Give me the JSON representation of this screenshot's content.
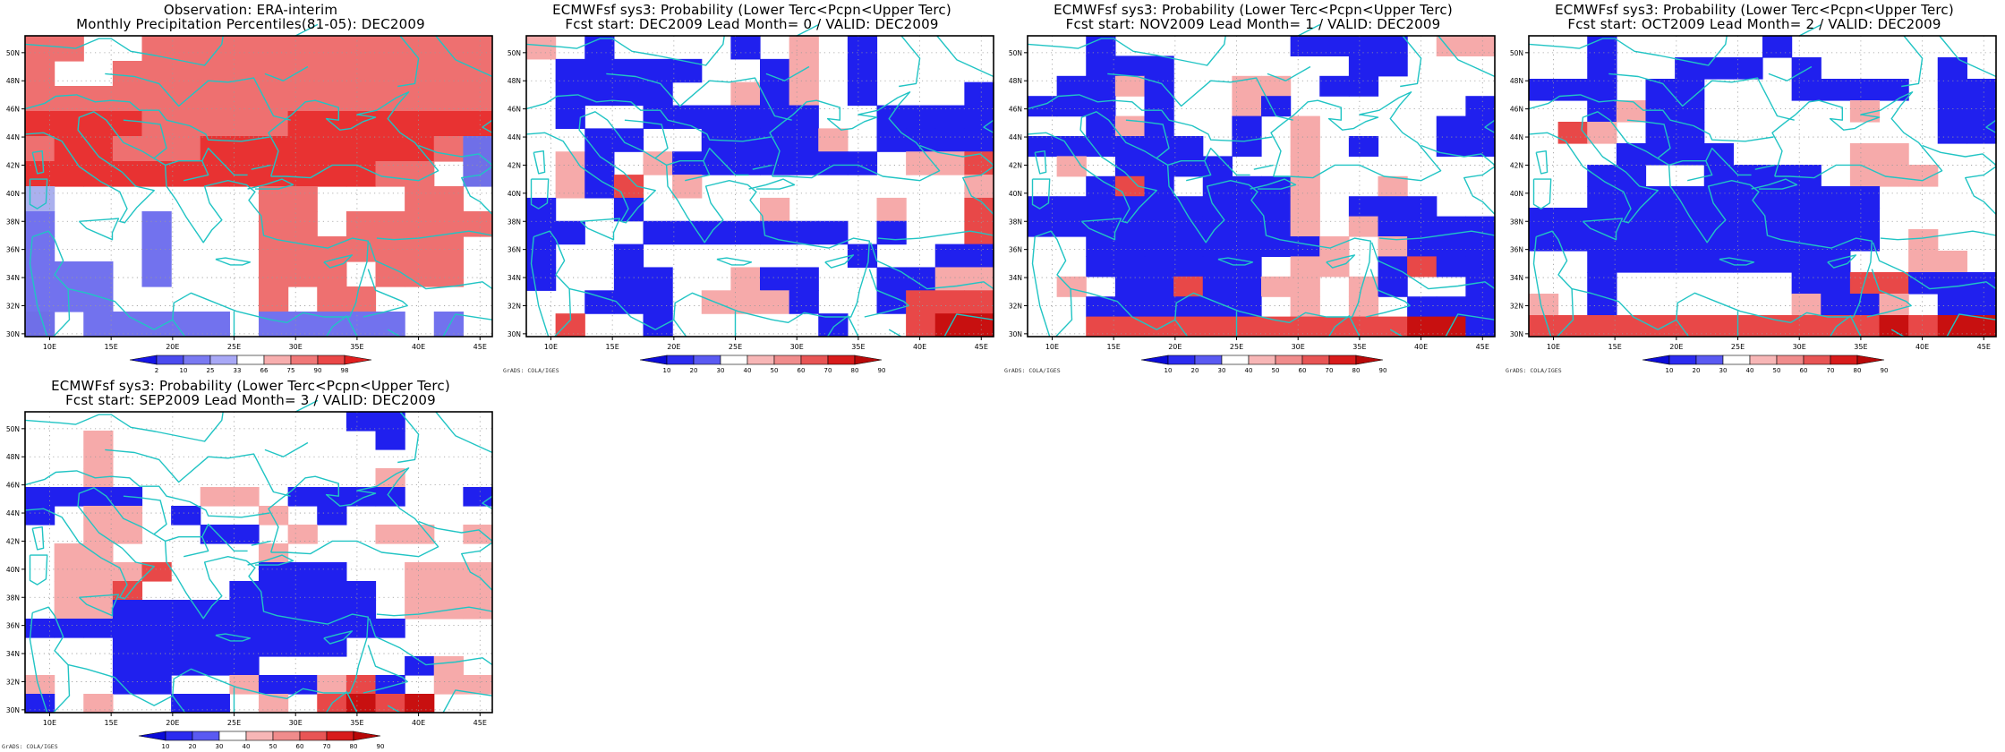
{
  "grid": {
    "lon_labels": [
      "10E",
      "15E",
      "20E",
      "25E",
      "30E",
      "35E",
      "40E",
      "45E"
    ],
    "lat_labels": [
      "30N",
      "32N",
      "34N",
      "36N",
      "38N",
      "40N",
      "42N",
      "44N",
      "46N",
      "48N",
      "50N"
    ]
  },
  "colors": {
    "coast": "#21c4c4",
    "grid_dots": "#9a9a9a",
    "cell_border": "none"
  },
  "credit": "GrADS: COLA/IGES",
  "panels": [
    {
      "title1": "Observation: ERA-interim",
      "title2": "Monthly Precipitation Percentiles(81-05): DEC2009",
      "palette": "obs",
      "show_credit": false,
      "colorbar": {
        "labels": [
          "2",
          "10",
          "25",
          "33",
          "66",
          "75",
          "90",
          "98"
        ],
        "colors": [
          "#1515e6",
          "#4b4bef",
          "#7a7af2",
          "#a8a8f6",
          "#ffffff",
          "#f7aeae",
          "#f07878",
          "#ea4747",
          "#e01e1e"
        ]
      },
      "cells": [
        "xx..xxxxxxxxxxxx",
        "x..xxxxxxxxxxxxx",
        "xxxxxxxxxxxxxxxx",
        "XXXXxxxxxXXXXXXX",
        "xXXxxxXXXXXXXXxB",
        "XXXXXXXXXXXXxx.B",
        "C.......xx...xx.",
        "b...b...xx.xxxxx",
        "b...b...xxxxxxx.",
        "bbb.b...xxx.xxx.",
        "bbb.....x.xx....",
        "B.bbbbb.bbbbb.b."
      ]
    },
    {
      "title1": "ECMWFsf sys3: Probability (Lower Terc<Pcpn<Upper Terc)",
      "title2": "Fcst start: DEC2009   Lead Month= 0 / VALID: DEC2009",
      "palette": "prob",
      "show_credit": true,
      "colorbar": {
        "labels": [
          "10",
          "20",
          "30",
          "40",
          "50",
          "60",
          "70",
          "80",
          "90"
        ],
        "colors": [
          "#0b0bd8",
          "#2b2bf0",
          "#5a5af2",
          "#ffffff",
          "#f7b6b6",
          "#f08c8c",
          "#e85555",
          "#d81b1b",
          "#b80808"
        ]
      },
      "cells": [
        "p.B....B.p.B....",
        ".BBBBB..Bp.B....",
        ".BBBB..pBp.B...B",
        ".B..BBBBBB..BBBB",
        "..BB..BBBBp.BBBB",
        ".pB.pBBBBBBB.ppr",
        ".pBr.p.........p",
        "B..B....p...p..r",
        "BB..BBBBBBB.B..r",
        "B..B.......B..BB",
        "B..BB..pBB..BBpp",
        "..BBB.pppB..Brrr",
        ".r..B.....B..rRR"
      ]
    },
    {
      "title1": "ECMWFsf sys3: Probability (Lower Terc<Pcpn<Upper Terc)",
      "title2": "Fcst start: NOV2009   Lead Month= 1 / VALID: DEC2009",
      "palette": "prob",
      "show_credit": true,
      "colorbar": {
        "labels": [
          "10",
          "20",
          "30",
          "40",
          "50",
          "60",
          "70",
          "80",
          "90"
        ],
        "colors": [
          "#0b0bd8",
          "#2b2bf0",
          "#5a5af2",
          "#ffffff",
          "#f7b6b6",
          "#f08c8c",
          "#e85555",
          "#d81b1b",
          "#b80808"
        ]
      },
      "cells": [
        "..B......BBBB.pp",
        "..BBB......BB...",
        ".BBpB..pp.BB....",
        "BBB.B..pB......B",
        "..BpB..B.p....BB",
        "BBBBBB.B.p.B..BB",
        ".p.BBBB..p......",
        "..BrB.BBBp..p...",
        "BBBBBBBBBp.BBB..",
        "BBBBBBBBBp.pBBBB",
        "..BBBBBBBBp.pBBB",
        "..BBBBBB.pp.BrBB",
        ".p.BBrBBpp.pB..B",
        "..BBBBBB.p.p.BBB",
        "..rrrrrrrrrrrRRB"
      ]
    },
    {
      "title1": "ECMWFsf sys3: Probability (Lower Terc<Pcpn<Upper Terc)",
      "title2": "Fcst start: OCT2009   Lead Month= 2 / VALID: DEC2009",
      "palette": "prob",
      "show_credit": true,
      "colorbar": {
        "labels": [
          "10",
          "20",
          "30",
          "40",
          "50",
          "60",
          "70",
          "80",
          "90"
        ],
        "colors": [
          "#0b0bd8",
          "#2b2bf0",
          "#5a5af2",
          "#ffffff",
          "#f7b6b6",
          "#f08c8c",
          "#e85555",
          "#d81b1b",
          "#b80808"
        ]
      },
      "cells": [
        "..B.....B.......",
        "..B..BBB.B....B.",
        "BBB.BB...BBBB.BB",
        "..BpBB.....p..BB",
        ".rp.BB........BB",
        "...BBBB....pp...",
        "..BB..BBBB.ppp..",
        "..BBBBBBBBBB....",
        "BBBBBBBBBBBB....",
        "BBBBBBBBBBBB.p..",
        "..BBBBBBBBB..pp.",
        "..B......BBrrBBB",
        "p.B......pBBp.BB",
        "rrrrrrrrrrrrRrRR"
      ]
    },
    {
      "title1": "ECMWFsf sys3: Probability (Lower Terc<Pcpn<Upper Terc)",
      "title2": "Fcst start: SEP2009   Lead Month= 3 / VALID: DEC2009",
      "palette": "prob",
      "show_credit": true,
      "colorbar": {
        "labels": [
          "10",
          "20",
          "30",
          "40",
          "50",
          "60",
          "70",
          "80",
          "90"
        ],
        "colors": [
          "#0b0bd8",
          "#2b2bf0",
          "#5a5af2",
          "#ffffff",
          "#f7b6b6",
          "#f08c8c",
          "#e85555",
          "#d81b1b",
          "#b80808"
        ]
      },
      "cells": [
        "...........BB...",
        "..p.........B...",
        "..p.............",
        "..p.........p...",
        "BBBB..pp.BBBB..B",
        "B.pp.B..p.B.....",
        "..pp..BB.p..pp.p",
        ".pp.....p.......",
        ".pppr...BBB..ppp",
        ".ppr...BBBBB.ppp",
        ".ppBBBBBBBBB.ppp",
        "BBBBBBBBBBBBB...",
        "...BBBBBBBB.....",
        "...BBBBB.....Bp.",
        "p..BB..pBBprB.pp",
        "B.p..BB.p.rRrR.."
      ]
    }
  ]
}
